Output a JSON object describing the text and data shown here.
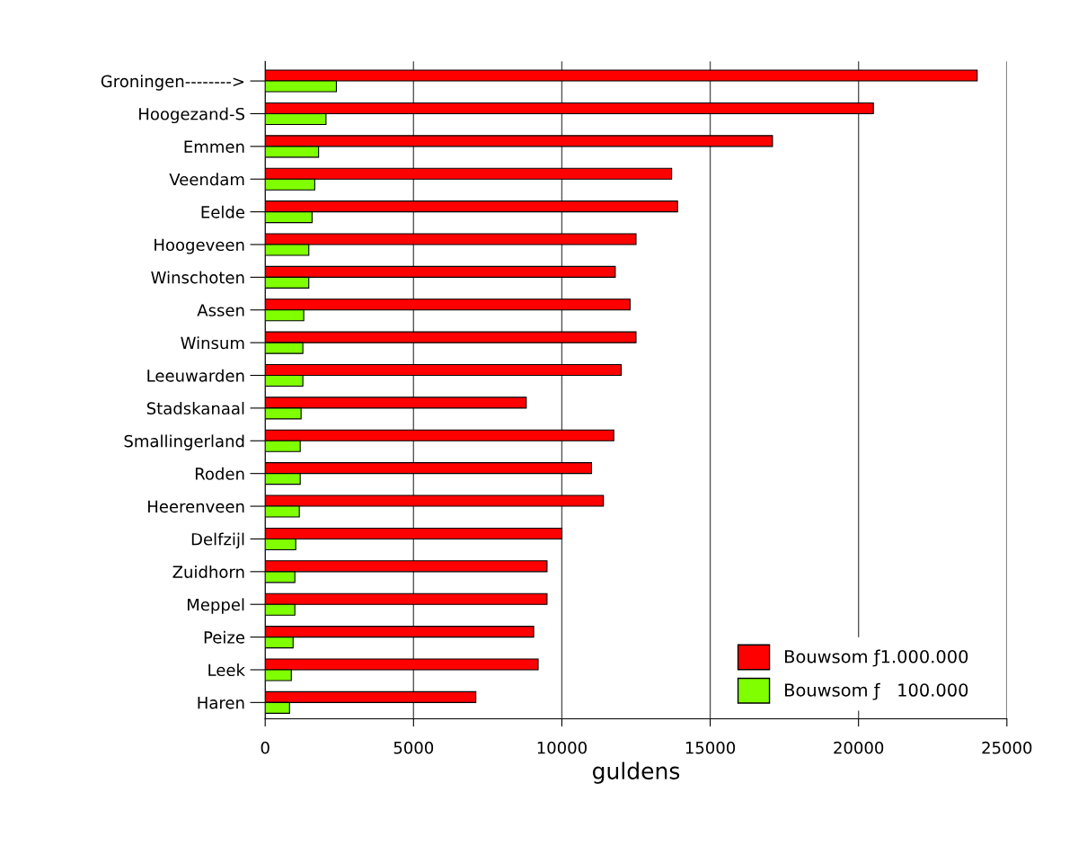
{
  "chart_data": {
    "type": "bar",
    "orientation": "horizontal",
    "xlabel": "guldens",
    "categories": [
      "Groningen-------->",
      "Hoogezand-S",
      "Emmen",
      "Veendam",
      "Eelde",
      "Hoogeveen",
      "Winschoten",
      "Assen",
      "Winsum",
      "Leeuwarden",
      "Stadskanaal",
      "Smallingerland",
      "Roden",
      "Heerenveen",
      "Delfzijl",
      "Zuidhorn",
      "Meppel",
      "Peize",
      "Leek",
      "Haren"
    ],
    "series": [
      {
        "name": "Bouwsom ƒ1.000.000",
        "color": "#ff0000",
        "values": [
          24000,
          20500,
          17100,
          13700,
          13900,
          12500,
          11800,
          12300,
          12500,
          12000,
          8800,
          11750,
          11000,
          11400,
          10000,
          9500,
          9500,
          9050,
          9200,
          7100
        ]
      },
      {
        "name": "Bouwsom ƒ   100.000",
        "color": "#80ff00",
        "values": [
          2400,
          2050,
          1800,
          1670,
          1580,
          1470,
          1470,
          1300,
          1270,
          1270,
          1210,
          1180,
          1180,
          1150,
          1030,
          1000,
          1000,
          940,
          880,
          820
        ]
      }
    ],
    "xlim": [
      0,
      25000
    ],
    "xticks": [
      0,
      5000,
      10000,
      15000,
      20000,
      25000
    ],
    "grid": "x",
    "legend": "bottom right"
  }
}
